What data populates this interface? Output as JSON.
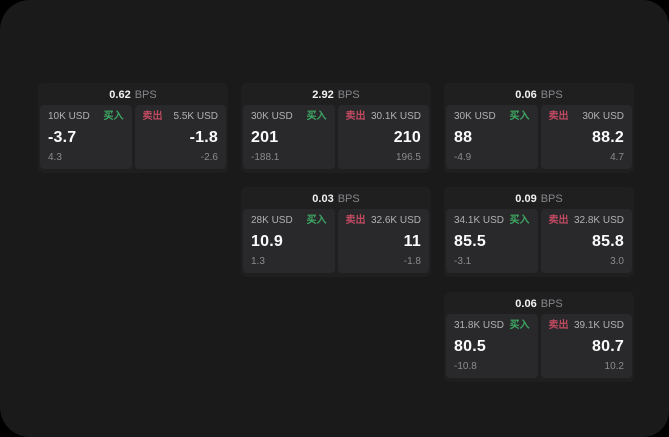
{
  "colors": {
    "buy": "#3fa864",
    "sell": "#bf4a60",
    "panel": "#1a1a1b",
    "card": "#1f1f20",
    "tile": "#29292b"
  },
  "cards": [
    {
      "bps_value": "0.62",
      "bps_unit": "BPS",
      "buy": {
        "amount": "10K USD",
        "side_label": "买入",
        "price": "-3.7",
        "delta": "4.3"
      },
      "sell": {
        "side_label": "卖出",
        "amount": "5.5K USD",
        "price": "-1.8",
        "delta": "-2.6"
      }
    },
    {
      "bps_value": "2.92",
      "bps_unit": "BPS",
      "buy": {
        "amount": "30K USD",
        "side_label": "买入",
        "price": "201",
        "delta": "-188.1"
      },
      "sell": {
        "side_label": "卖出",
        "amount": "30.1K USD",
        "price": "210",
        "delta": "196.5"
      }
    },
    {
      "bps_value": "0.06",
      "bps_unit": "BPS",
      "buy": {
        "amount": "30K USD",
        "side_label": "买入",
        "price": "88",
        "delta": "-4.9"
      },
      "sell": {
        "side_label": "卖出",
        "amount": "30K USD",
        "price": "88.2",
        "delta": "4.7"
      }
    },
    {
      "bps_value": "0.03",
      "bps_unit": "BPS",
      "buy": {
        "amount": "28K USD",
        "side_label": "买入",
        "price": "10.9",
        "delta": "1.3"
      },
      "sell": {
        "side_label": "卖出",
        "amount": "32.6K USD",
        "price": "11",
        "delta": "-1.8"
      }
    },
    {
      "bps_value": "0.09",
      "bps_unit": "BPS",
      "buy": {
        "amount": "34.1K USD",
        "side_label": "买入",
        "price": "85.5",
        "delta": "-3.1"
      },
      "sell": {
        "side_label": "卖出",
        "amount": "32.8K USD",
        "price": "85.8",
        "delta": "3.0"
      }
    },
    {
      "bps_value": "0.06",
      "bps_unit": "BPS",
      "buy": {
        "amount": "31.8K USD",
        "side_label": "买入",
        "price": "80.5",
        "delta": "-10.8"
      },
      "sell": {
        "side_label": "卖出",
        "amount": "39.1K USD",
        "price": "80.7",
        "delta": "10.2"
      }
    }
  ]
}
